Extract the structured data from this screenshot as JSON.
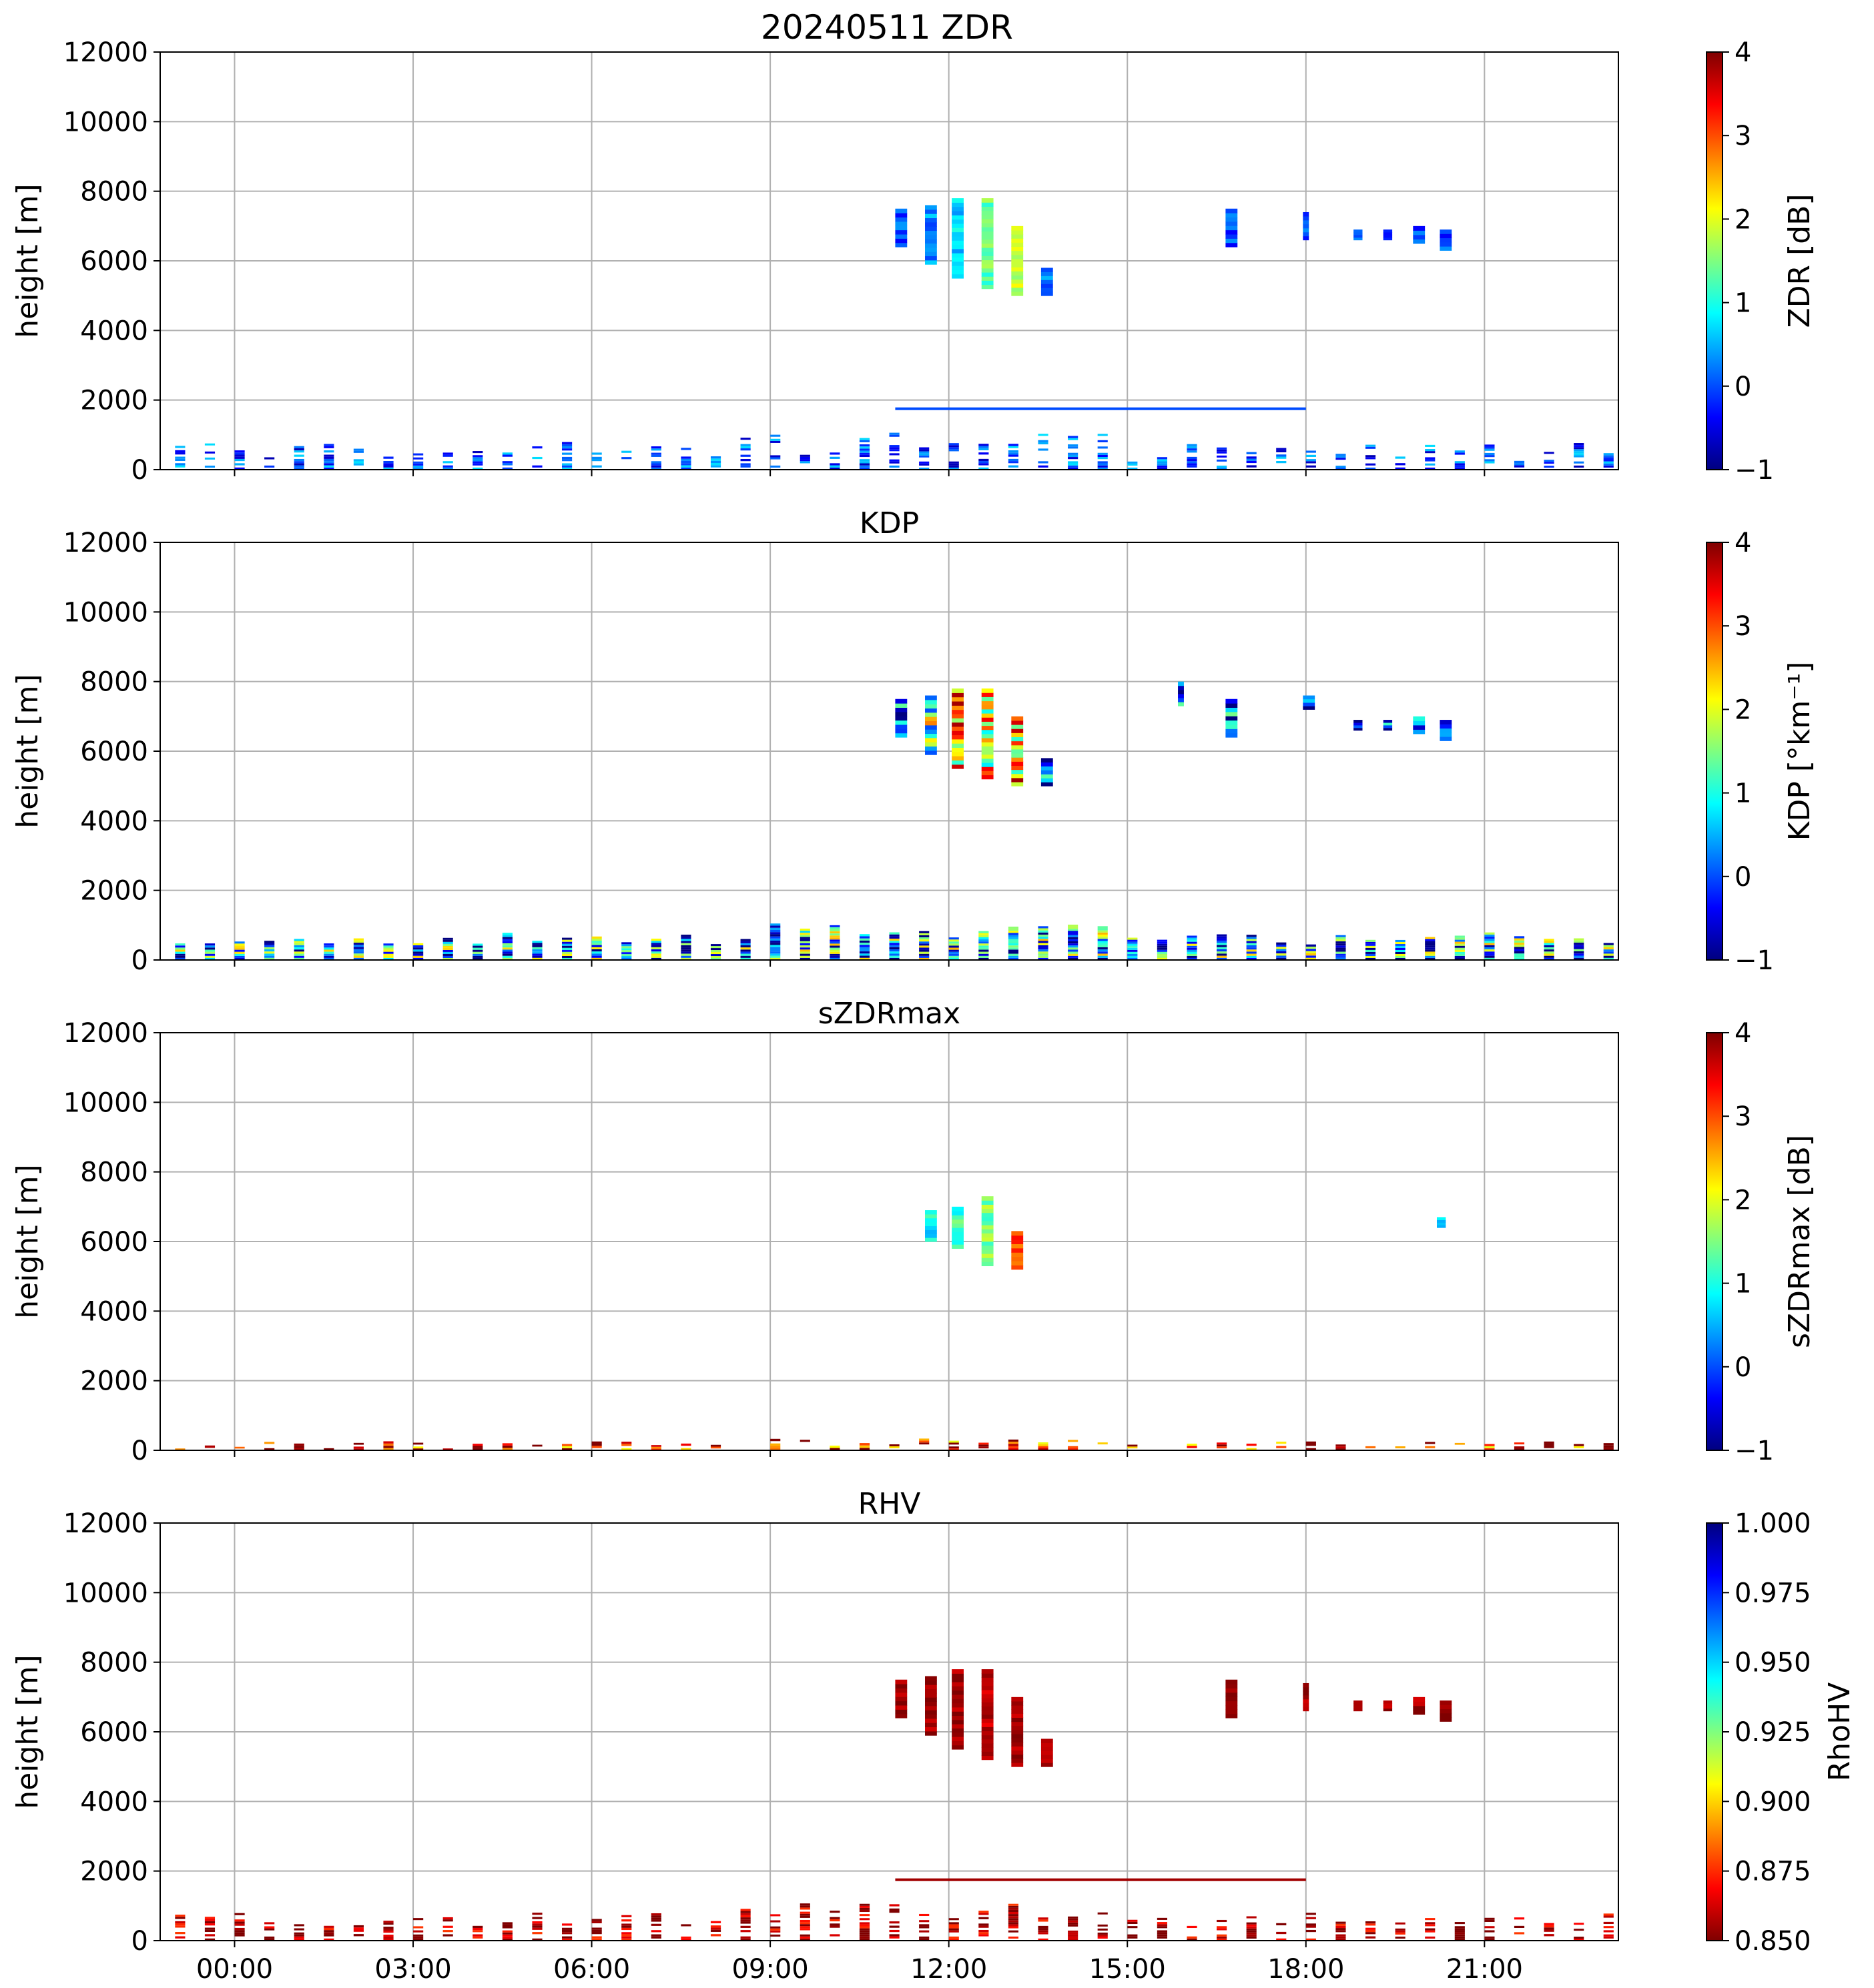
{
  "figure": {
    "suptitle": "20240511 ZDR"
  },
  "colors": {
    "jet_stops": [
      "#00007f",
      "#0000ff",
      "#007fff",
      "#00ffff",
      "#7fff7f",
      "#ffff00",
      "#ff7f00",
      "#ff0000",
      "#7f0000"
    ],
    "grid": "#b0b0b0",
    "axes": "#000000"
  },
  "chart_data": [
    {
      "type": "heatmap",
      "title": "",
      "ylabel": "height [m]",
      "ylim": [
        0,
        12000
      ],
      "yticks": [
        "0",
        "2000",
        "4000",
        "6000",
        "8000",
        "10000",
        "12000"
      ],
      "xlim_hours": [
        -1.25,
        23.25
      ],
      "xticks": [],
      "grid": true,
      "colorbar": {
        "label": "ZDR [dB]",
        "range": [
          -1,
          4
        ],
        "ticks": [
          "−1",
          "0",
          "1",
          "2",
          "3",
          "4"
        ],
        "reversed": false
      },
      "echoes": [
        {
          "x0": 11.1,
          "x1": 11.3,
          "y0": 6400,
          "y1": 7500,
          "value": 0.0
        },
        {
          "x0": 11.6,
          "x1": 11.8,
          "y0": 5900,
          "y1": 7600,
          "value": 0.3
        },
        {
          "x0": 12.05,
          "x1": 12.25,
          "y0": 5500,
          "y1": 7800,
          "value": 0.7
        },
        {
          "x0": 12.55,
          "x1": 12.75,
          "y0": 5200,
          "y1": 7800,
          "value": 1.4
        },
        {
          "x0": 13.05,
          "x1": 13.25,
          "y0": 5000,
          "y1": 7000,
          "value": 1.8
        },
        {
          "x0": 13.55,
          "x1": 13.75,
          "y0": 5000,
          "y1": 5800,
          "value": 0.2
        },
        {
          "x0": 16.65,
          "x1": 16.85,
          "y0": 6400,
          "y1": 7500,
          "value": 0.0
        },
        {
          "x0": 17.95,
          "x1": 18.05,
          "y0": 6600,
          "y1": 7400,
          "value": 0.0
        },
        {
          "x0": 18.8,
          "x1": 18.95,
          "y0": 6600,
          "y1": 6900,
          "value": 0.0
        },
        {
          "x0": 19.3,
          "x1": 19.45,
          "y0": 6600,
          "y1": 6900,
          "value": 0.0
        },
        {
          "x0": 19.8,
          "x1": 20.0,
          "y0": 6500,
          "y1": 7000,
          "value": 0.0
        },
        {
          "x0": 20.25,
          "x1": 20.45,
          "y0": 6300,
          "y1": 6900,
          "value": 0.0
        }
      ],
      "low_cloud": {
        "top_m": 900,
        "value": 0.0,
        "sparse": true
      },
      "layer_line": {
        "x0": 11.1,
        "x1": 18.0,
        "y": 1750,
        "value": 0.0
      }
    },
    {
      "type": "heatmap",
      "title": "KDP",
      "ylabel": "height [m]",
      "ylim": [
        0,
        12000
      ],
      "yticks": [
        "0",
        "2000",
        "4000",
        "6000",
        "8000",
        "10000",
        "12000"
      ],
      "xlim_hours": [
        -1.25,
        23.25
      ],
      "xticks": [],
      "grid": true,
      "colorbar": {
        "label": "KDP [°km⁻¹]",
        "range": [
          -1,
          4
        ],
        "ticks": [
          "−1",
          "0",
          "1",
          "2",
          "3",
          "4"
        ],
        "reversed": false
      },
      "echoes": [
        {
          "x0": 11.1,
          "x1": 11.3,
          "y0": 6400,
          "y1": 7500,
          "value": 0.0
        },
        {
          "x0": 11.6,
          "x1": 11.8,
          "y0": 5900,
          "y1": 7600,
          "value": 1.5
        },
        {
          "x0": 12.05,
          "x1": 12.25,
          "y0": 5500,
          "y1": 7800,
          "value": 2.5
        },
        {
          "x0": 12.55,
          "x1": 12.75,
          "y0": 5200,
          "y1": 7800,
          "value": 2.0
        },
        {
          "x0": 13.05,
          "x1": 13.25,
          "y0": 5000,
          "y1": 7000,
          "value": 2.5
        },
        {
          "x0": 13.55,
          "x1": 13.75,
          "y0": 5000,
          "y1": 5800,
          "value": 0.0
        },
        {
          "x0": 15.85,
          "x1": 15.95,
          "y0": 7300,
          "y1": 8000,
          "value": 0.0
        },
        {
          "x0": 16.65,
          "x1": 16.85,
          "y0": 6400,
          "y1": 7500,
          "value": 0.0
        },
        {
          "x0": 17.95,
          "x1": 18.15,
          "y0": 7200,
          "y1": 7600,
          "value": 0.0
        },
        {
          "x0": 18.8,
          "x1": 18.95,
          "y0": 6600,
          "y1": 6900,
          "value": 0.0
        },
        {
          "x0": 19.3,
          "x1": 19.45,
          "y0": 6600,
          "y1": 6900,
          "value": 0.0
        },
        {
          "x0": 19.8,
          "x1": 20.0,
          "y0": 6500,
          "y1": 7000,
          "value": 0.0
        },
        {
          "x0": 20.25,
          "x1": 20.45,
          "y0": 6300,
          "y1": 6900,
          "value": 0.3
        }
      ],
      "low_cloud": {
        "top_m": 900,
        "value": 0.5,
        "sparse": false
      },
      "layer_line": null
    },
    {
      "type": "heatmap",
      "title": "sZDRmax",
      "ylabel": "height [m]",
      "ylim": [
        0,
        12000
      ],
      "yticks": [
        "0",
        "2000",
        "4000",
        "6000",
        "8000",
        "10000",
        "12000"
      ],
      "xlim_hours": [
        -1.25,
        23.25
      ],
      "xticks": [],
      "grid": true,
      "colorbar": {
        "label": "sZDRmax [dB]",
        "range": [
          -1,
          4
        ],
        "ticks": [
          "−1",
          "0",
          "1",
          "2",
          "3",
          "4"
        ],
        "reversed": false
      },
      "echoes": [
        {
          "x0": 11.6,
          "x1": 11.8,
          "y0": 6000,
          "y1": 6900,
          "value": 0.9
        },
        {
          "x0": 12.05,
          "x1": 12.25,
          "y0": 5800,
          "y1": 7000,
          "value": 1.2
        },
        {
          "x0": 12.55,
          "x1": 12.75,
          "y0": 5300,
          "y1": 7300,
          "value": 1.5
        },
        {
          "x0": 13.05,
          "x1": 13.25,
          "y0": 5200,
          "y1": 6300,
          "value": 3.0
        },
        {
          "x0": 20.2,
          "x1": 20.35,
          "y0": 6400,
          "y1": 6700,
          "value": 0.8
        }
      ],
      "low_cloud": {
        "top_m": 300,
        "value": 3.5,
        "sparse": true
      },
      "layer_line": null
    },
    {
      "type": "heatmap",
      "title": "RHV",
      "ylabel": "height [m]",
      "ylim": [
        0,
        12000
      ],
      "yticks": [
        "0",
        "2000",
        "4000",
        "6000",
        "8000",
        "10000",
        "12000"
      ],
      "xlim_hours": [
        -1.25,
        23.25
      ],
      "xticks": [
        "00:00",
        "03:00",
        "06:00",
        "09:00",
        "12:00",
        "15:00",
        "18:00",
        "21:00"
      ],
      "grid": true,
      "colorbar": {
        "label": "RhoHV",
        "range": [
          0.85,
          1.0
        ],
        "ticks": [
          "0.850",
          "0.875",
          "0.900",
          "0.925",
          "0.950",
          "0.975",
          "1.000"
        ],
        "reversed": true
      },
      "echoes": [
        {
          "x0": 11.1,
          "x1": 11.3,
          "y0": 6400,
          "y1": 7500,
          "value": 0.855
        },
        {
          "x0": 11.6,
          "x1": 11.8,
          "y0": 5900,
          "y1": 7600,
          "value": 0.855
        },
        {
          "x0": 12.05,
          "x1": 12.25,
          "y0": 5500,
          "y1": 7800,
          "value": 0.855
        },
        {
          "x0": 12.55,
          "x1": 12.75,
          "y0": 5200,
          "y1": 7800,
          "value": 0.86
        },
        {
          "x0": 13.05,
          "x1": 13.25,
          "y0": 5000,
          "y1": 7000,
          "value": 0.855
        },
        {
          "x0": 13.55,
          "x1": 13.75,
          "y0": 5000,
          "y1": 5800,
          "value": 0.855
        },
        {
          "x0": 16.65,
          "x1": 16.85,
          "y0": 6400,
          "y1": 7500,
          "value": 0.855
        },
        {
          "x0": 17.95,
          "x1": 18.05,
          "y0": 6600,
          "y1": 7400,
          "value": 0.855
        },
        {
          "x0": 18.8,
          "x1": 18.95,
          "y0": 6600,
          "y1": 6900,
          "value": 0.855
        },
        {
          "x0": 19.3,
          "x1": 19.45,
          "y0": 6600,
          "y1": 6900,
          "value": 0.855
        },
        {
          "x0": 19.8,
          "x1": 20.0,
          "y0": 6500,
          "y1": 7000,
          "value": 0.855
        },
        {
          "x0": 20.25,
          "x1": 20.45,
          "y0": 6300,
          "y1": 6900,
          "value": 0.855
        }
      ],
      "low_cloud": {
        "top_m": 900,
        "value": 0.855,
        "sparse": true
      },
      "layer_line": {
        "x0": 11.1,
        "x1": 18.0,
        "y": 1750,
        "value": 0.855
      }
    }
  ]
}
